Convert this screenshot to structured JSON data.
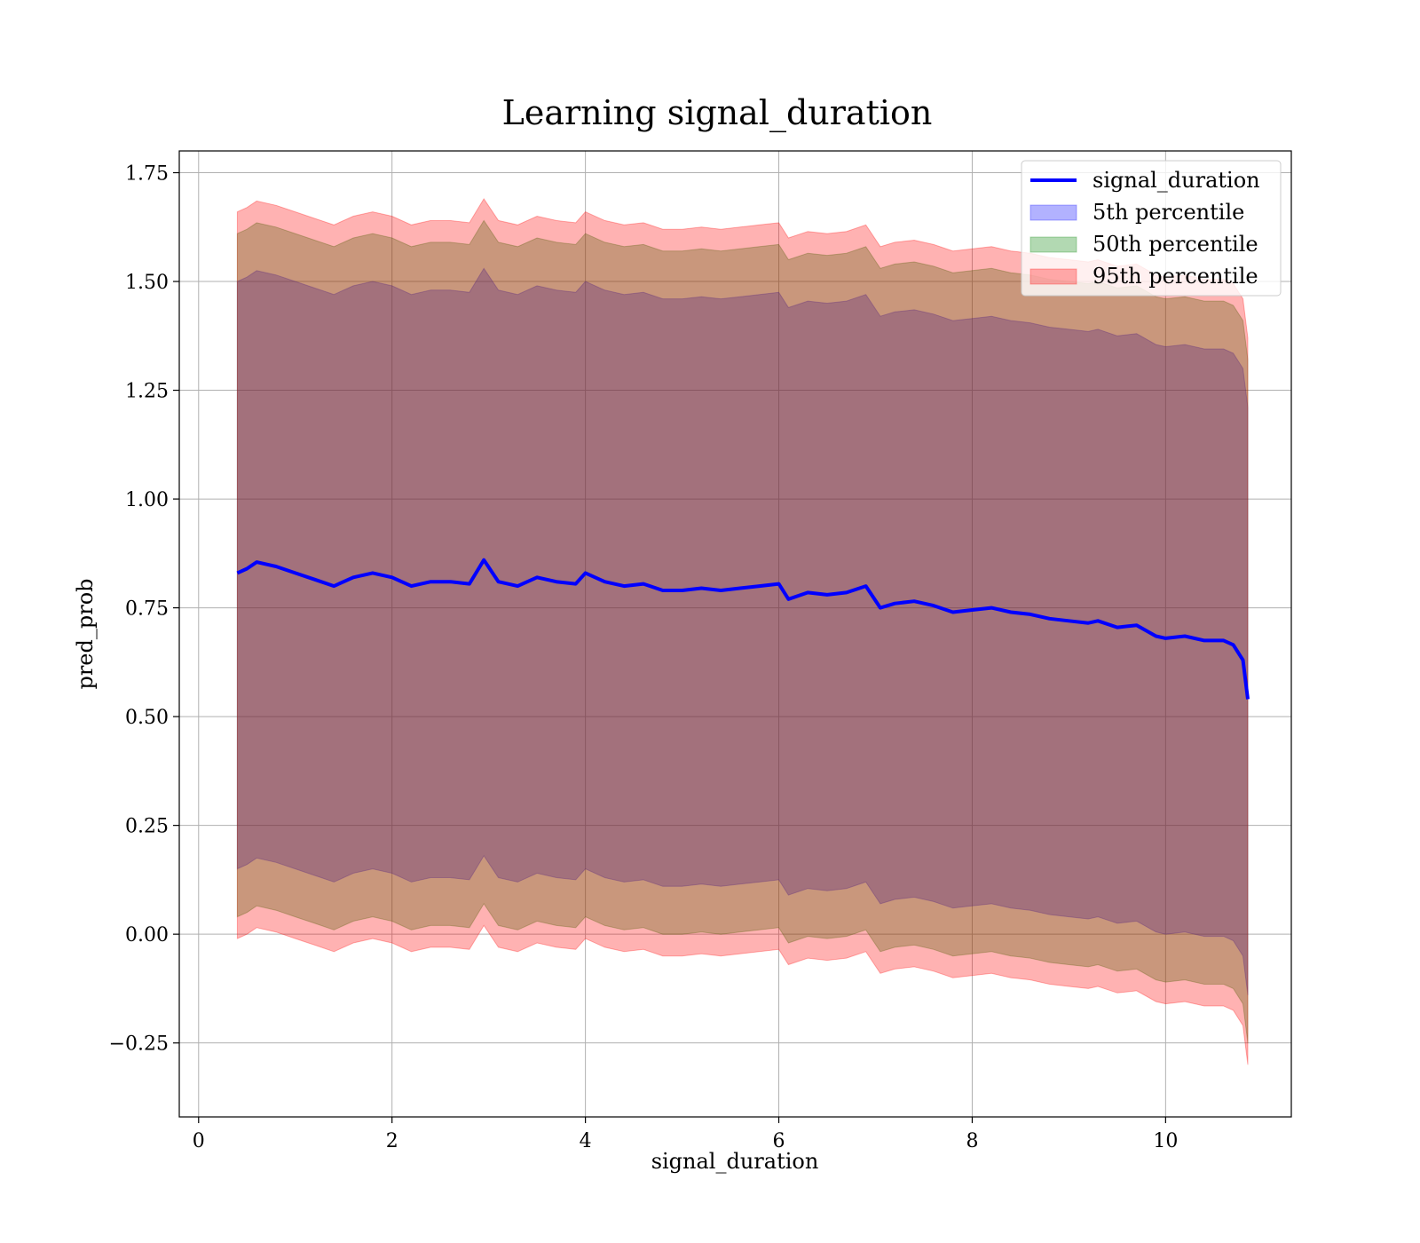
{
  "chart_data": {
    "type": "line",
    "title": "Learning signal_duration",
    "xlabel": "signal_duration",
    "ylabel": "pred_prob",
    "xlim": [
      -0.2,
      11.3
    ],
    "ylim": [
      -0.42,
      1.8
    ],
    "xticks": [
      0,
      2,
      4,
      6,
      8,
      10
    ],
    "xtick_labels": [
      "0",
      "2",
      "4",
      "6",
      "8",
      "10"
    ],
    "yticks": [
      -0.25,
      0,
      0.25,
      0.5,
      0.75,
      1.0,
      1.25,
      1.5,
      1.75
    ],
    "ytick_labels": [
      "−0.25",
      "0.00",
      "0.25",
      "0.50",
      "0.75",
      "1.00",
      "1.25",
      "1.50",
      "1.75"
    ],
    "grid": true,
    "legend_position": "top-right",
    "x": [
      0.4,
      0.5,
      0.6,
      0.8,
      1.0,
      1.2,
      1.4,
      1.6,
      1.8,
      2.0,
      2.2,
      2.4,
      2.6,
      2.8,
      2.95,
      3.1,
      3.3,
      3.5,
      3.7,
      3.9,
      4.0,
      4.2,
      4.4,
      4.6,
      4.8,
      5.0,
      5.2,
      5.4,
      5.6,
      5.8,
      6.0,
      6.1,
      6.3,
      6.5,
      6.7,
      6.9,
      7.05,
      7.2,
      7.4,
      7.6,
      7.8,
      8.0,
      8.2,
      8.4,
      8.6,
      8.8,
      9.0,
      9.2,
      9.3,
      9.5,
      9.7,
      9.9,
      10.0,
      10.2,
      10.4,
      10.6,
      10.7,
      10.8,
      10.85
    ],
    "series": [
      {
        "name": "signal_duration",
        "kind": "line",
        "color": "#0000ff",
        "values": [
          0.83,
          0.84,
          0.855,
          0.845,
          0.83,
          0.815,
          0.8,
          0.82,
          0.83,
          0.82,
          0.8,
          0.81,
          0.81,
          0.805,
          0.86,
          0.81,
          0.8,
          0.82,
          0.81,
          0.805,
          0.83,
          0.81,
          0.8,
          0.805,
          0.79,
          0.79,
          0.795,
          0.79,
          0.795,
          0.8,
          0.805,
          0.77,
          0.785,
          0.78,
          0.785,
          0.8,
          0.75,
          0.76,
          0.765,
          0.755,
          0.74,
          0.745,
          0.75,
          0.74,
          0.735,
          0.725,
          0.72,
          0.715,
          0.72,
          0.705,
          0.71,
          0.685,
          0.68,
          0.685,
          0.675,
          0.675,
          0.665,
          0.63,
          0.54
        ]
      },
      {
        "name": "5th percentile",
        "kind": "band",
        "color": "#0000ff",
        "lower": [
          0.15,
          0.16,
          0.175,
          0.165,
          0.15,
          0.135,
          0.12,
          0.14,
          0.15,
          0.14,
          0.12,
          0.13,
          0.13,
          0.125,
          0.18,
          0.13,
          0.12,
          0.14,
          0.13,
          0.125,
          0.15,
          0.13,
          0.12,
          0.125,
          0.11,
          0.11,
          0.115,
          0.11,
          0.115,
          0.12,
          0.125,
          0.09,
          0.105,
          0.1,
          0.105,
          0.12,
          0.07,
          0.08,
          0.085,
          0.075,
          0.06,
          0.065,
          0.07,
          0.06,
          0.055,
          0.045,
          0.04,
          0.035,
          0.04,
          0.025,
          0.03,
          0.005,
          0.0,
          0.005,
          -0.005,
          -0.005,
          -0.015,
          -0.05,
          -0.14
        ],
        "upper": [
          1.5,
          1.51,
          1.525,
          1.515,
          1.5,
          1.485,
          1.47,
          1.49,
          1.5,
          1.49,
          1.47,
          1.48,
          1.48,
          1.475,
          1.53,
          1.48,
          1.47,
          1.49,
          1.48,
          1.475,
          1.5,
          1.48,
          1.47,
          1.475,
          1.46,
          1.46,
          1.465,
          1.46,
          1.465,
          1.47,
          1.475,
          1.44,
          1.455,
          1.45,
          1.455,
          1.47,
          1.42,
          1.43,
          1.435,
          1.425,
          1.41,
          1.415,
          1.42,
          1.41,
          1.405,
          1.395,
          1.39,
          1.385,
          1.39,
          1.375,
          1.38,
          1.355,
          1.35,
          1.355,
          1.345,
          1.345,
          1.335,
          1.3,
          1.21
        ]
      },
      {
        "name": "50th percentile",
        "kind": "band",
        "color": "#008000",
        "lower": [
          0.04,
          0.05,
          0.065,
          0.055,
          0.04,
          0.025,
          0.01,
          0.03,
          0.04,
          0.03,
          0.01,
          0.02,
          0.02,
          0.015,
          0.07,
          0.02,
          0.01,
          0.03,
          0.02,
          0.015,
          0.04,
          0.02,
          0.01,
          0.015,
          0.0,
          0.0,
          0.005,
          0.0,
          0.005,
          0.01,
          0.015,
          -0.02,
          -0.005,
          -0.01,
          -0.005,
          0.01,
          -0.04,
          -0.03,
          -0.025,
          -0.035,
          -0.05,
          -0.045,
          -0.04,
          -0.05,
          -0.055,
          -0.065,
          -0.07,
          -0.075,
          -0.07,
          -0.085,
          -0.08,
          -0.105,
          -0.11,
          -0.105,
          -0.115,
          -0.115,
          -0.125,
          -0.16,
          -0.25
        ],
        "upper": [
          1.61,
          1.62,
          1.635,
          1.625,
          1.61,
          1.595,
          1.58,
          1.6,
          1.61,
          1.6,
          1.58,
          1.59,
          1.59,
          1.585,
          1.64,
          1.59,
          1.58,
          1.6,
          1.59,
          1.585,
          1.61,
          1.59,
          1.58,
          1.585,
          1.57,
          1.57,
          1.575,
          1.57,
          1.575,
          1.58,
          1.585,
          1.55,
          1.565,
          1.56,
          1.565,
          1.58,
          1.53,
          1.54,
          1.545,
          1.535,
          1.52,
          1.525,
          1.53,
          1.52,
          1.515,
          1.505,
          1.5,
          1.495,
          1.5,
          1.485,
          1.49,
          1.465,
          1.46,
          1.465,
          1.455,
          1.455,
          1.445,
          1.41,
          1.32
        ]
      },
      {
        "name": "95th percentile",
        "kind": "band",
        "color": "#ff0000",
        "lower": [
          -0.01,
          0.0,
          0.015,
          0.005,
          -0.01,
          -0.025,
          -0.04,
          -0.02,
          -0.01,
          -0.02,
          -0.04,
          -0.03,
          -0.03,
          -0.035,
          0.02,
          -0.03,
          -0.04,
          -0.02,
          -0.03,
          -0.035,
          -0.01,
          -0.03,
          -0.04,
          -0.035,
          -0.05,
          -0.05,
          -0.045,
          -0.05,
          -0.045,
          -0.04,
          -0.035,
          -0.07,
          -0.055,
          -0.06,
          -0.055,
          -0.04,
          -0.09,
          -0.08,
          -0.075,
          -0.085,
          -0.1,
          -0.095,
          -0.09,
          -0.1,
          -0.105,
          -0.115,
          -0.12,
          -0.125,
          -0.12,
          -0.135,
          -0.13,
          -0.155,
          -0.16,
          -0.155,
          -0.165,
          -0.165,
          -0.175,
          -0.21,
          -0.3
        ],
        "upper": [
          1.66,
          1.67,
          1.685,
          1.675,
          1.66,
          1.645,
          1.63,
          1.65,
          1.66,
          1.65,
          1.63,
          1.64,
          1.64,
          1.635,
          1.69,
          1.64,
          1.63,
          1.65,
          1.64,
          1.635,
          1.66,
          1.64,
          1.63,
          1.635,
          1.62,
          1.62,
          1.625,
          1.62,
          1.625,
          1.63,
          1.635,
          1.6,
          1.615,
          1.61,
          1.615,
          1.63,
          1.58,
          1.59,
          1.595,
          1.585,
          1.57,
          1.575,
          1.58,
          1.57,
          1.565,
          1.555,
          1.55,
          1.545,
          1.55,
          1.535,
          1.54,
          1.515,
          1.51,
          1.515,
          1.505,
          1.505,
          1.495,
          1.46,
          1.37
        ]
      }
    ]
  }
}
